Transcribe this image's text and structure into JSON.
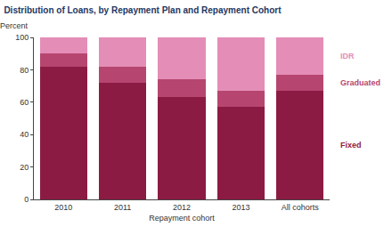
{
  "chart_data": {
    "type": "bar",
    "title": "Distribution of Loans, by Repayment Plan and Repayment Cohort",
    "ylabel": "Percent",
    "xlabel": "Repayment cohort",
    "categories": [
      "2010",
      "2011",
      "2012",
      "2013",
      "All cohorts"
    ],
    "series": [
      {
        "name": "Fixed",
        "color": "#8c1b43",
        "values": [
          82,
          72,
          63,
          57,
          67
        ]
      },
      {
        "name": "Graduated",
        "color": "#b6466f",
        "values": [
          8,
          10,
          11,
          10,
          10
        ]
      },
      {
        "name": "IDR",
        "color": "#e48db7",
        "values": [
          10,
          18,
          26,
          33,
          23
        ]
      }
    ],
    "stacked": true,
    "ylim": [
      0,
      100
    ],
    "yticks": [
      0,
      20,
      40,
      60,
      80,
      100
    ],
    "grid": false,
    "legend": "right"
  }
}
